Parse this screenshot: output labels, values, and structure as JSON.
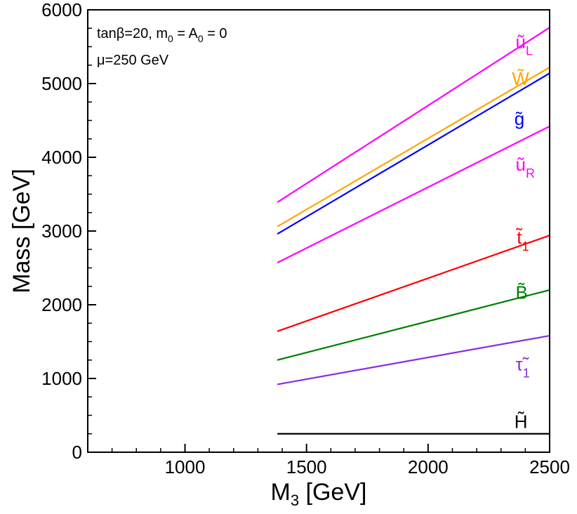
{
  "chart_data": {
    "type": "line",
    "xlabel": "M",
    "xlabel_sub": "3",
    "xlabel_unit": " [GeV]",
    "ylabel": "Mass  [GeV]",
    "xlim": [
      600,
      2500
    ],
    "ylim": [
      0,
      6000
    ],
    "xticks": [
      1000,
      1500,
      2000,
      2500
    ],
    "yticks": [
      0,
      1000,
      2000,
      3000,
      4000,
      5000,
      6000
    ],
    "annotations": [
      "tanβ=20, m",
      "0",
      " = A",
      "0",
      " = 0",
      "μ=250 GeV"
    ],
    "series": [
      {
        "name": "ũL",
        "base": "ũ",
        "sub": "L",
        "color": "#ff00ff",
        "x": [
          1380,
          2500
        ],
        "y": [
          3390,
          5760
        ],
        "label_x": 2360,
        "label_y": 5480
      },
      {
        "name": "W̃",
        "base": "W̃",
        "sub": "",
        "color": "#ffa500",
        "x": [
          1380,
          2500
        ],
        "y": [
          3060,
          5220
        ],
        "label_x": 2345,
        "label_y": 4980
      },
      {
        "name": "g̃",
        "base": "g̃",
        "sub": "",
        "color": "#0000ff",
        "x": [
          1380,
          2500
        ],
        "y": [
          2960,
          5140
        ],
        "label_x": 2355,
        "label_y": 4440
      },
      {
        "name": "ũR",
        "base": "ũ",
        "sub": "R",
        "color": "#ff00ff",
        "x": [
          1380,
          2500
        ],
        "y": [
          2570,
          4420
        ],
        "label_x": 2360,
        "label_y": 3820
      },
      {
        "name": "t̃1",
        "base": "t̃",
        "sub": "1",
        "color": "#ff0000",
        "x": [
          1380,
          2500
        ],
        "y": [
          1640,
          2940
        ],
        "label_x": 2365,
        "label_y": 2830
      },
      {
        "name": "B̃",
        "base": "B̃",
        "sub": "",
        "color": "#008000",
        "x": [
          1380,
          2500
        ],
        "y": [
          1250,
          2200
        ],
        "label_x": 2360,
        "label_y": 2080
      },
      {
        "name": "τ̃1",
        "base": "τ̃",
        "sub": "1",
        "color": "#8a2be2",
        "x": [
          1380,
          2500
        ],
        "y": [
          920,
          1580
        ],
        "label_x": 2360,
        "label_y": 1110
      },
      {
        "name": "H̃",
        "base": "H̃",
        "sub": "",
        "color": "#000000",
        "x": [
          1380,
          2500
        ],
        "y": [
          250,
          250
        ],
        "label_x": 2355,
        "label_y": 330
      }
    ]
  }
}
